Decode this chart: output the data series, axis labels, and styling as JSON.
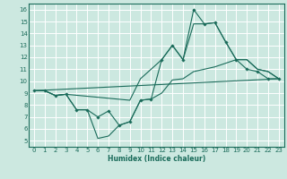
{
  "xlabel": "Humidex (Indice chaleur)",
  "xlim": [
    -0.5,
    23.5
  ],
  "ylim": [
    4.5,
    16.5
  ],
  "xticks": [
    0,
    1,
    2,
    3,
    4,
    5,
    6,
    7,
    8,
    9,
    10,
    11,
    12,
    13,
    14,
    15,
    16,
    17,
    18,
    19,
    20,
    21,
    22,
    23
  ],
  "yticks": [
    5,
    6,
    7,
    8,
    9,
    10,
    11,
    12,
    13,
    14,
    15,
    16
  ],
  "bg_color": "#cce8e0",
  "grid_color": "#ffffff",
  "line_color": "#1a6b5a",
  "line1_x": [
    0,
    1,
    2,
    3,
    4,
    5,
    6,
    7,
    8,
    9,
    10,
    11,
    12,
    13,
    14,
    15,
    16,
    17,
    18,
    19,
    20,
    21,
    22,
    23
  ],
  "line1_y": [
    9.2,
    9.2,
    8.8,
    8.9,
    7.6,
    7.6,
    7.0,
    7.5,
    6.3,
    6.6,
    8.4,
    8.5,
    11.8,
    13.0,
    11.8,
    16.0,
    14.8,
    14.9,
    13.3,
    11.8,
    11.0,
    10.8,
    10.2,
    10.2
  ],
  "line2_x": [
    0,
    1,
    2,
    3,
    9,
    10,
    11,
    12,
    13,
    14,
    15,
    16,
    17,
    18,
    19,
    20,
    21,
    22,
    23
  ],
  "line2_y": [
    9.2,
    9.2,
    8.8,
    8.9,
    8.4,
    10.2,
    11.0,
    11.8,
    13.0,
    11.8,
    14.8,
    14.8,
    14.9,
    13.3,
    11.8,
    11.8,
    11.0,
    10.8,
    10.2
  ],
  "line3_x": [
    0,
    23
  ],
  "line3_y": [
    9.2,
    10.2
  ],
  "line4_x": [
    0,
    1,
    2,
    3,
    4,
    5,
    6,
    7,
    8,
    9,
    10,
    11,
    12,
    13,
    14,
    15,
    16,
    17,
    18,
    19,
    20,
    21,
    22,
    23
  ],
  "line4_y": [
    9.2,
    9.2,
    8.8,
    8.9,
    7.6,
    7.6,
    5.2,
    5.4,
    6.3,
    6.6,
    8.4,
    8.5,
    9.0,
    10.1,
    10.2,
    10.8,
    11.0,
    11.2,
    11.5,
    11.8,
    11.8,
    11.0,
    10.8,
    10.2
  ]
}
